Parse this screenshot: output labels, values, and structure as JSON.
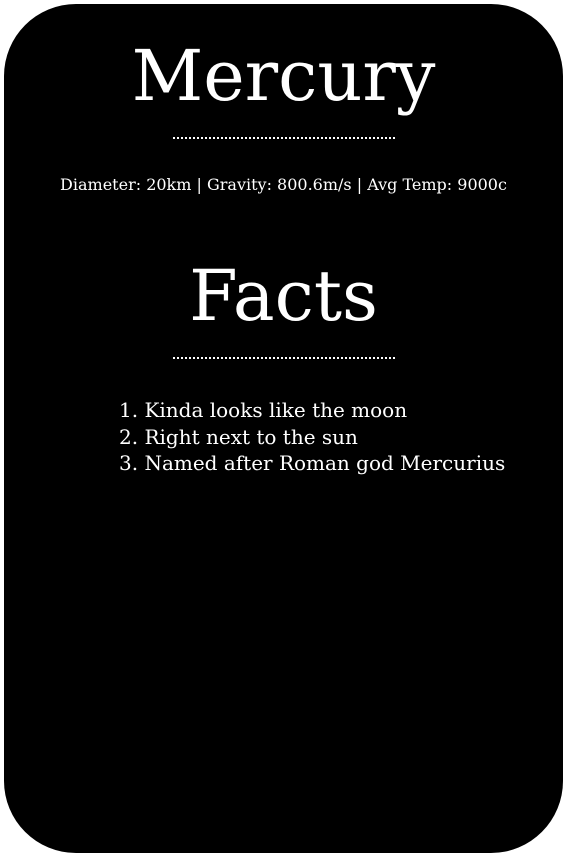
{
  "planet": {
    "name": "Mercury",
    "stats": "Diameter: 20km | Gravity: 800.6m/s | Avg Temp: 9000c"
  },
  "facts": {
    "heading": "Facts",
    "items": [
      "1. Kinda looks like the moon",
      "2. Right next to the sun",
      "3. Named after Roman god Mercurius"
    ]
  },
  "colors": {
    "card_background": "#000000",
    "text": "#ffffff",
    "page_background": "#ffffff"
  }
}
